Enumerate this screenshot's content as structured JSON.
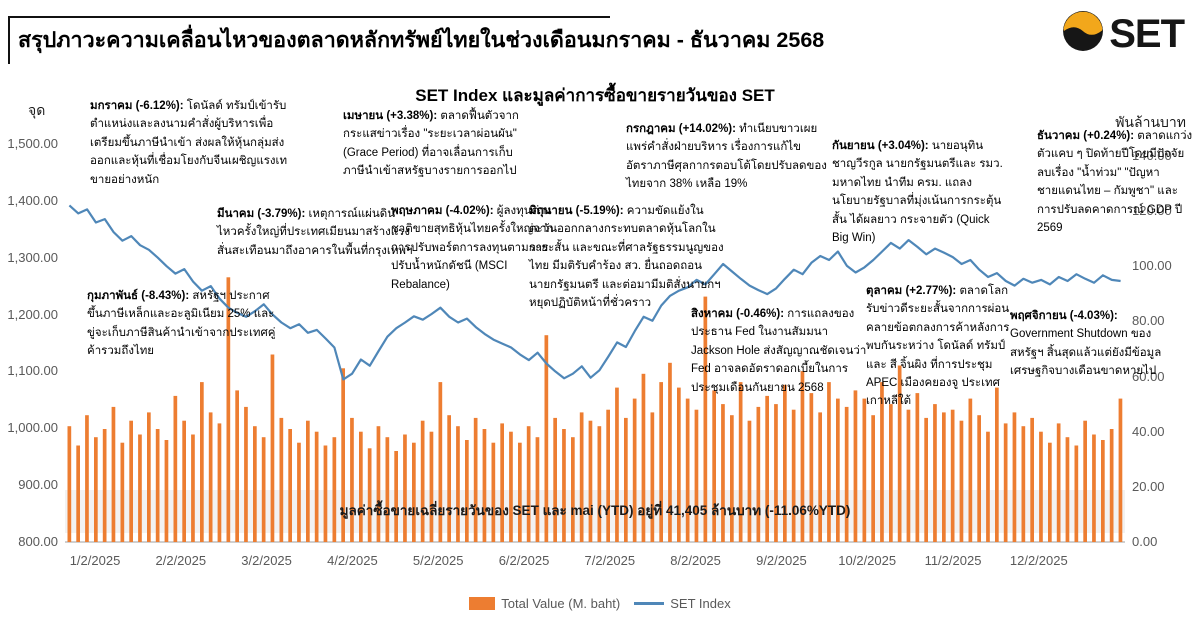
{
  "header": {
    "title": "สรุปภาวะความเคลื่อนไหวของตลาดหลักทรัพย์ไทยในช่วงเดือนมกราคม - ธันวาคม 2568",
    "logo_text": "SET"
  },
  "chart": {
    "title": "SET Index และมูลค่าการซื้อขายรายวันของ SET",
    "left_axis_unit": "จุด",
    "right_axis_unit": "พันล้านบาท",
    "band_text": "มูลค่าซื้อขายเฉลี่ยรายวันของ SET และ mai (YTD) อยู่ที่ 41,405 ล้านบาท (-11.06%YTD)",
    "legend": [
      {
        "label": "Total Value (M. baht)",
        "color": "#ED7D31"
      },
      {
        "label": "SET Index",
        "color": "#4F87B8"
      }
    ]
  },
  "annotations": [
    {
      "title": "มกราคม (-6.12%):",
      "body": "โดนัลด์ ทรัมป์เข้ารับตำแหน่งและลงนามคำสั่งผู้บริหารเพื่อเตรียมขึ้นภาษีนำเข้า ส่งผลให้หุ้นกลุ่มส่งออกและหุ้นที่เชื่อมโยงกับจีนเผชิญแรงเทขายอย่างหนัก"
    },
    {
      "title": "กุมภาพันธ์ (-8.43%):",
      "body": "สหรัฐฯ ประกาศขึ้นภาษีเหล็กและอะลูมิเนียม 25% และขู่จะเก็บภาษีสินค้านำเข้าจากประเทศคู่ค้ารวมถึงไทย"
    },
    {
      "title": "มีนาคม (-3.79%):",
      "body": "เหตุการณ์แผ่นดินไหวครั้งใหญ่ที่ประเทศเมียนมาสร้างแรงสั่นสะเทือนมาถึงอาคารในพื้นที่กรุงเทพฯ"
    },
    {
      "title": "เมษายน (+3.38%):",
      "body": "ตลาดฟื้นตัวจากกระแสข่าวเรื่อง \"ระยะเวลาผ่อนผัน\" (Grace Period) ที่อาจเลื่อนการเก็บภาษีนำเข้าสหรัฐบางรายการออกไป"
    },
    {
      "title": "พฤษภาคม (-4.02%):",
      "body": "ผู้ลงทุนต่างชาติขายสุทธิหุ้นไทยครั้งใหญ่จากการปรับพอร์ตการลงทุนตามการปรับน้ำหนักดัชนี (MSCI Rebalance)"
    },
    {
      "title": "มิถุนายน (-5.19%):",
      "body": "ความขัดแย้งในตะวันออกกลางกระทบตลาดหุ้นโลกในระยะสั้น และขณะที่ศาลรัฐธรรมนูญของไทย มีมติรับคำร้อง สว. ยื่นถอดถอนนายกรัฐมนตรี และต่อมามีมติสั่งนายกฯ หยุดปฏิบัติหน้าที่ชั่วคราว"
    },
    {
      "title": "กรกฎาคม (+14.02%):",
      "body": "ทำเนียบขาวเผยแพร่คำสั่งฝ่ายบริหาร เรื่องการแก้ไขอัตราภาษีศุลกากรตอบโต้โดยปรับลดของไทยจาก 38% เหลือ 19%"
    },
    {
      "title": "สิงหาคม (-0.46%):",
      "body": "การแถลงของประธาน Fed ในงานสัมมนา Jackson Hole ส่งสัญญาณชัดเจนว่า Fed อาจลดอัตราดอกเบี้ยในการประชุมเดือนกันยายน 2568"
    },
    {
      "title": "กันยายน (+3.04%):",
      "body": "นายอนุทิน ชาญวีรกูล นายกรัฐมนตรีและ รมว. มหาดไทย นำทีม ครม. แถลงนโยบายรัฐบาลที่มุ่งเน้นการกระตุ้นสั้น ได้ผลยาว กระจายตัว (Quick Big Win)"
    },
    {
      "title": "ตุลาคม (+2.77%):",
      "body": "ตลาดโลกรับข่าวดีระยะสั้นจากการผ่อนคลายข้อตกลงการค้าหลังการพบกันระหว่าง โดนัลด์ ทรัมป์ และ สี จิ้นผิง ที่การประชุม APEC เมืองคยองจู ประเทศเกาหลีใต้"
    },
    {
      "title": "พฤศจิกายน (-4.03%):",
      "body": "Government Shutdown ของสหรัฐฯ สิ้นสุดแล้วแต่ยังมีข้อมูลเศรษฐกิจบางเดือนขาดหายไป"
    },
    {
      "title": "ธันวาคม (+0.24%):",
      "body": "ตลาดแกว่งตัวแคบ ๆ ปิดท้ายปีโดยมีปัจจัยลบเรื่อง \"น้ำท่วม\" \"ปัญหาชายแดนไทย – กัมพูชา\" และการปรับลดคาดการณ์ GDP ปี 2569"
    }
  ],
  "chart_data": {
    "type": "combo",
    "title": "SET Index และมูลค่าการซื้อขายรายวันของ SET",
    "legend_position": "bottom",
    "grid": false,
    "y_left": {
      "label": "จุด",
      "min": 800,
      "max": 1500,
      "tick_step": 100,
      "tick_labels": [
        "1,500.00",
        "1,400.00",
        "1,300.00",
        "1,200.00",
        "1,100.00",
        "1,000.00",
        "900.00",
        "800.00"
      ]
    },
    "y_right": {
      "label": "พันล้านบาท",
      "min": 0,
      "max": 140,
      "tick_step": 20,
      "tick_labels": [
        "140.00",
        "120.00",
        "100.00",
        "80.00",
        "60.00",
        "40.00",
        "20.00",
        "0.00"
      ]
    },
    "x_labels": [
      "1/2/2025",
      "2/2/2025",
      "3/2/2025",
      "4/2/2025",
      "5/2/2025",
      "6/2/2025",
      "7/2/2025",
      "8/2/2025",
      "9/2/2025",
      "10/2/2025",
      "11/2/2025",
      "12/2/2025"
    ],
    "monthly_returns_pct": {
      "Jan": -6.12,
      "Feb": -8.43,
      "Mar": -3.79,
      "Apr": 3.38,
      "May": -4.02,
      "Jun": -5.19,
      "Jul": 14.02,
      "Aug": -0.46,
      "Sep": 3.04,
      "Oct": 2.77,
      "Nov": -4.03,
      "Dec": 0.24
    },
    "avg_daily_value_m_baht": 41405,
    "avg_daily_value_ytd_pct": -11.06,
    "series": [
      {
        "name": "Total Value (M. baht)",
        "type": "bar",
        "axis": "right",
        "color": "#ED7D31",
        "values": [
          42,
          35,
          46,
          38,
          41,
          49,
          36,
          44,
          39,
          47,
          41,
          37,
          53,
          44,
          39,
          58,
          47,
          43,
          96,
          55,
          49,
          42,
          38,
          68,
          45,
          41,
          36,
          44,
          40,
          35,
          38,
          63,
          45,
          40,
          34,
          42,
          38,
          33,
          39,
          36,
          44,
          40,
          58,
          46,
          42,
          37,
          45,
          41,
          36,
          43,
          40,
          36,
          42,
          38,
          75,
          45,
          41,
          38,
          47,
          44,
          42,
          48,
          56,
          45,
          52,
          61,
          47,
          58,
          65,
          56,
          52,
          48,
          89,
          55,
          50,
          46,
          58,
          44,
          49,
          53,
          50,
          57,
          48,
          62,
          54,
          47,
          58,
          52,
          49,
          55,
          52,
          46,
          58,
          50,
          64,
          48,
          54,
          45,
          50,
          47,
          48,
          44,
          52,
          46,
          40,
          56,
          43,
          47,
          42,
          45,
          40,
          36,
          43,
          38,
          35,
          44,
          39,
          37,
          41,
          52
        ]
      },
      {
        "name": "SET Index",
        "type": "line",
        "axis": "left",
        "color": "#4F87B8",
        "values": [
          1392,
          1378,
          1385,
          1362,
          1368,
          1345,
          1330,
          1338,
          1322,
          1314,
          1300,
          1285,
          1272,
          1280,
          1258,
          1242,
          1250,
          1228,
          1212,
          1203,
          1196,
          1206,
          1218,
          1200,
          1186,
          1176,
          1183,
          1168,
          1173,
          1158,
          1142,
          1086,
          1096,
          1121,
          1110,
          1136,
          1161,
          1176,
          1186,
          1197,
          1191,
          1201,
          1212,
          1196,
          1186,
          1193,
          1178,
          1166,
          1156,
          1149,
          1142,
          1130,
          1120,
          1133,
          1114,
          1100,
          1088,
          1096,
          1109,
          1089,
          1102,
          1126,
          1151,
          1143,
          1171,
          1196,
          1189,
          1216,
          1233,
          1242,
          1248,
          1261,
          1253,
          1271,
          1289,
          1276,
          1263,
          1251,
          1243,
          1236,
          1246,
          1263,
          1279,
          1271,
          1291,
          1303,
          1296,
          1311,
          1286,
          1274,
          1283,
          1296,
          1311,
          1326,
          1316,
          1331,
          1319,
          1306,
          1316,
          1309,
          1301,
          1289,
          1296,
          1279,
          1266,
          1273,
          1259,
          1251,
          1263,
          1256,
          1261,
          1253,
          1266,
          1259,
          1271,
          1263,
          1256,
          1269,
          1261,
          1259
        ]
      }
    ]
  }
}
